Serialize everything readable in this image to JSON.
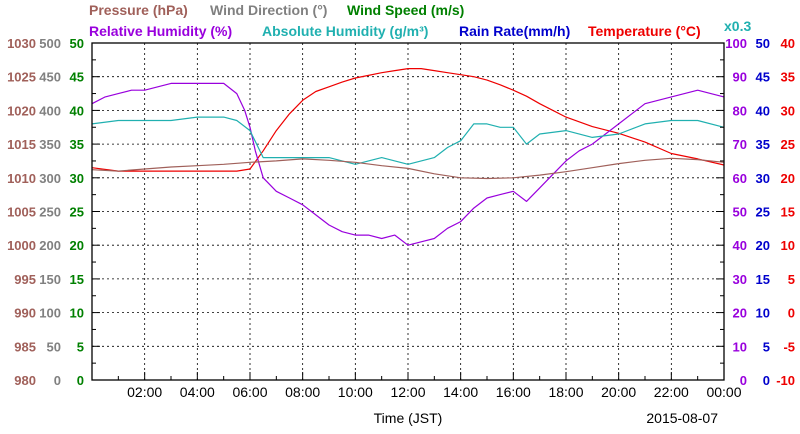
{
  "chart_data": {
    "type": "line",
    "legend": [
      {
        "label": "Pressure (hPa)",
        "color": "#a0605a"
      },
      {
        "label": "Wind Direction (°)",
        "color": "#808080"
      },
      {
        "label": "Wind Speed (m/s)",
        "color": "#008000"
      },
      {
        "label": "Relative Humidity (%)",
        "color": "#9900dd"
      },
      {
        "label": "Absolute Humidity (g/m³)",
        "color": "#20b0b0"
      },
      {
        "label": "Rain Rate(mm/h)",
        "color": "#0000cc"
      },
      {
        "label": "Temperature (°C)",
        "color": "#ee0000"
      }
    ],
    "scale_note": "x0.3",
    "xlabel": "Time (JST)",
    "date_label": "2015-08-07",
    "x_ticks": [
      "02:00",
      "04:00",
      "06:00",
      "08:00",
      "10:00",
      "12:00",
      "14:00",
      "16:00",
      "18:00",
      "20:00",
      "22:00",
      "00:00"
    ],
    "x_range_hours": [
      0,
      24
    ],
    "axes": {
      "pressure": {
        "color": "#a0605a",
        "ticks": [
          "980",
          "985",
          "990",
          "995",
          "1000",
          "1005",
          "1010",
          "1015",
          "1020",
          "1025",
          "1030"
        ],
        "range": [
          980,
          1030
        ]
      },
      "wind_direction": {
        "color": "#808080",
        "ticks": [
          "0",
          "50",
          "100",
          "150",
          "200",
          "250",
          "300",
          "350",
          "400",
          "450",
          "500"
        ],
        "range": [
          0,
          500
        ]
      },
      "wind_speed": {
        "color": "#008000",
        "ticks": [
          "0",
          "5",
          "10",
          "15",
          "20",
          "25",
          "30",
          "35",
          "40",
          "45",
          "50"
        ],
        "range": [
          0,
          50
        ]
      },
      "relative_humidity": {
        "color": "#9900dd",
        "ticks": [
          "0",
          "10",
          "20",
          "30",
          "40",
          "50",
          "60",
          "70",
          "80",
          "90",
          "100"
        ],
        "range": [
          0,
          100
        ]
      },
      "rain_rate": {
        "color": "#0000cc",
        "ticks": [
          "0",
          "5",
          "10",
          "15",
          "20",
          "25",
          "30",
          "35",
          "40",
          "45",
          "50"
        ],
        "range": [
          0,
          50
        ]
      },
      "temperature": {
        "color": "#ee0000",
        "ticks": [
          "-10",
          "-5",
          "0",
          "5",
          "10",
          "15",
          "20",
          "25",
          "30",
          "35",
          "40"
        ],
        "range": [
          -10,
          40
        ]
      }
    },
    "series": [
      {
        "name": "Temperature (°C)",
        "axis": "temperature",
        "color": "#ee0000",
        "x": [
          0,
          1,
          2,
          3,
          4,
          5,
          5.5,
          6,
          6.5,
          7,
          7.5,
          8,
          8.5,
          9,
          9.5,
          10,
          10.5,
          11,
          11.5,
          12,
          12.5,
          13,
          13.5,
          14,
          14.5,
          15,
          15.5,
          16,
          16.5,
          17,
          18,
          19,
          20,
          21,
          22,
          23,
          24
        ],
        "y": [
          21.5,
          21,
          21,
          21,
          21,
          21,
          21,
          21.3,
          24,
          27,
          29.5,
          31.5,
          32.8,
          33.5,
          34.2,
          34.8,
          35.2,
          35.6,
          35.9,
          36.2,
          36.2,
          35.9,
          35.6,
          35.3,
          35,
          34.5,
          33.8,
          33,
          32.1,
          31,
          29,
          27.6,
          26.6,
          25.3,
          23.6,
          22.8,
          21.9
        ]
      },
      {
        "name": "Relative Humidity (%)",
        "axis": "relative_humidity",
        "color": "#9900dd",
        "x": [
          0,
          0.5,
          1,
          1.5,
          2,
          3,
          4,
          5,
          5.5,
          5.8,
          6,
          6.2,
          6.5,
          7,
          7.5,
          8,
          8.5,
          9,
          9.5,
          10,
          10.5,
          11,
          11.5,
          12,
          12.5,
          13,
          13.5,
          14,
          14.5,
          15,
          15.5,
          16,
          16.5,
          17,
          17.5,
          18,
          18.5,
          19,
          19.5,
          20,
          20.5,
          21,
          22,
          23,
          23.5,
          24
        ],
        "y": [
          82,
          84,
          85,
          86,
          86,
          88,
          88,
          88,
          85,
          80,
          75,
          68,
          60,
          56,
          54,
          52,
          49,
          46,
          44,
          43,
          43,
          42,
          43,
          40,
          41,
          42,
          45,
          47,
          51,
          54,
          55,
          56,
          53,
          57,
          61,
          65,
          68,
          70,
          73,
          76,
          79,
          82,
          84,
          86,
          85,
          84
        ]
      },
      {
        "name": "Absolute Humidity (g/m³)",
        "axis": "relative_humidity",
        "color": "#20b0b0",
        "x": [
          0,
          1,
          2,
          3,
          4,
          5,
          5.5,
          6,
          6.5,
          7,
          8,
          9,
          10,
          11,
          12,
          12.5,
          13,
          13.5,
          14,
          14.5,
          15,
          15.5,
          16,
          16.5,
          17,
          18,
          19,
          20,
          21,
          22,
          23,
          24
        ],
        "y": [
          76,
          77,
          77,
          77,
          78,
          78,
          77,
          74,
          66,
          66,
          66,
          66,
          64,
          66,
          64,
          65,
          66,
          69,
          71,
          76,
          76,
          75,
          75,
          70,
          73,
          74,
          72,
          73,
          76,
          77,
          77,
          75
        ]
      },
      {
        "name": "Pressure (hPa)",
        "axis": "pressure",
        "color": "#a0605a",
        "x": [
          0,
          1,
          2,
          3,
          4,
          5,
          6,
          7,
          8,
          9,
          10,
          11,
          12,
          13,
          14,
          15,
          16,
          17,
          18,
          19,
          20,
          21,
          22,
          23,
          24
        ],
        "y": [
          1011.2,
          1011,
          1011.3,
          1011.6,
          1011.8,
          1012,
          1012.3,
          1012.5,
          1012.8,
          1012.6,
          1012.3,
          1011.8,
          1011.4,
          1010.6,
          1010,
          1009.9,
          1010,
          1010.4,
          1010.9,
          1011.5,
          1012.1,
          1012.6,
          1012.9,
          1012.7,
          1012.3
        ]
      }
    ]
  }
}
